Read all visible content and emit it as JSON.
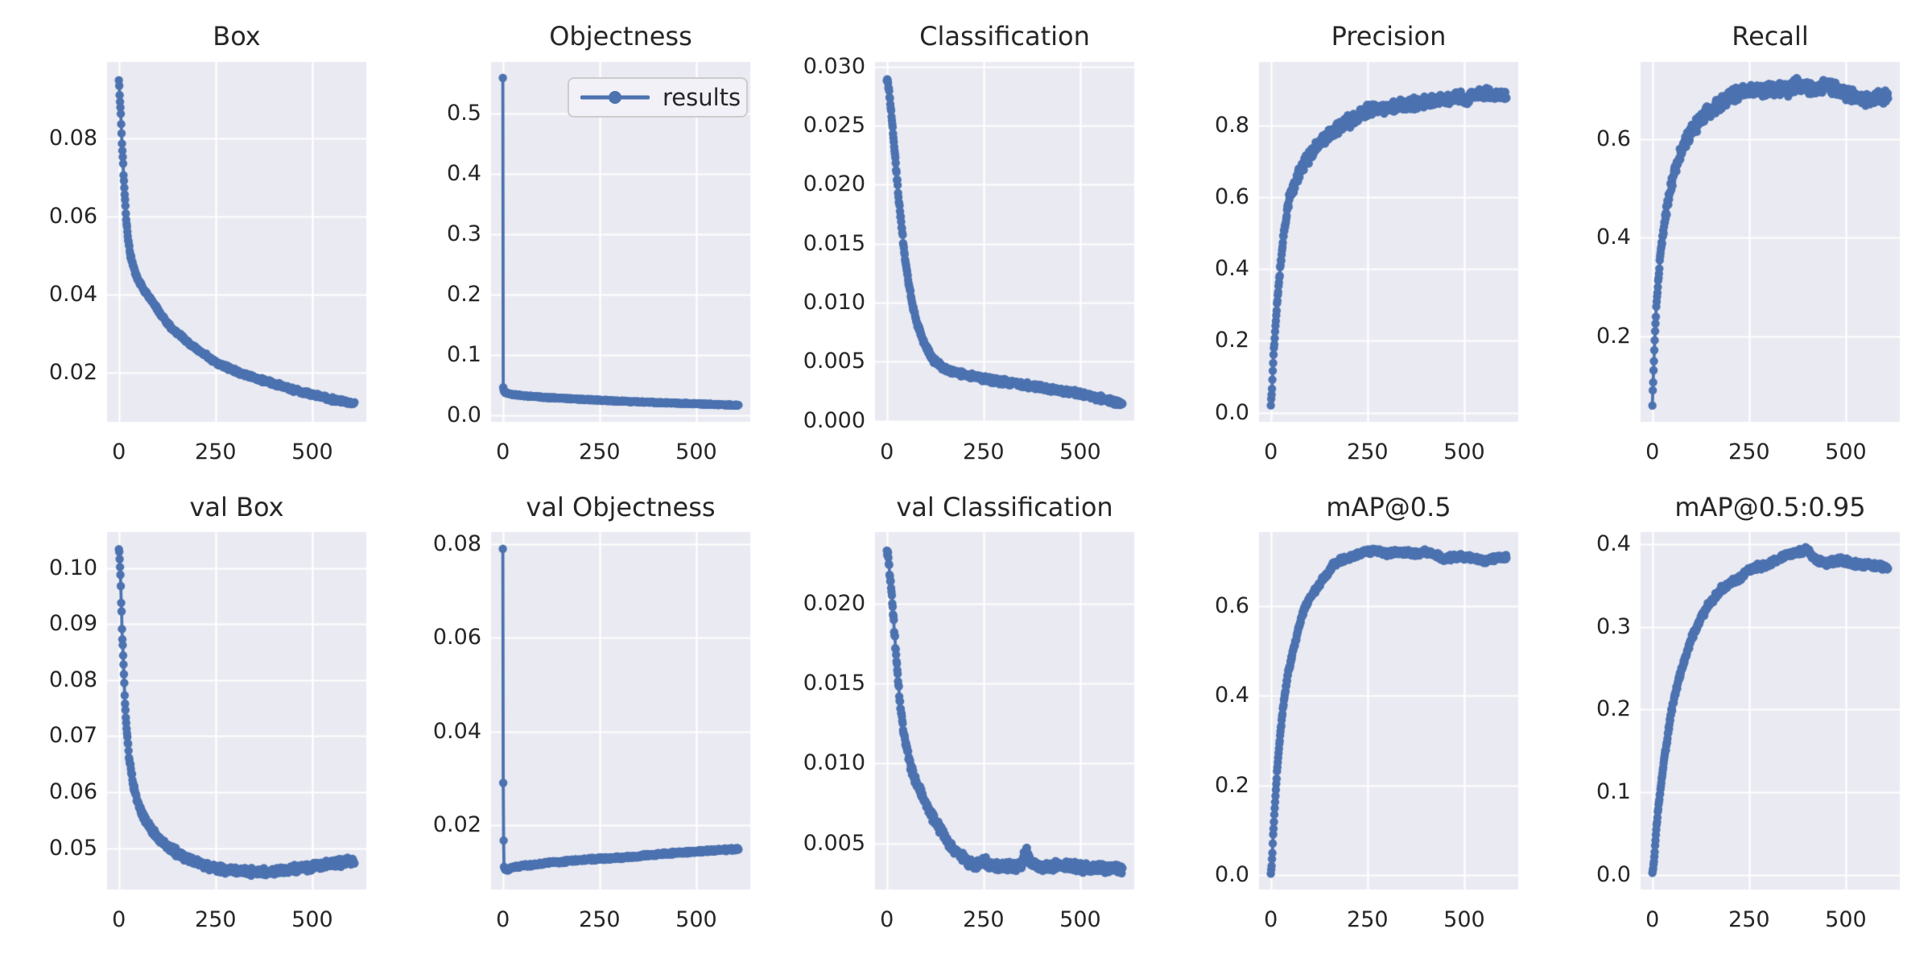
{
  "figure": {
    "series_color": "#4c72b0",
    "axes_background": "#eaeaf2",
    "grid_color": "#ffffff",
    "text_color": "#262626",
    "figure_background": "#ffffff",
    "legend_background": "#f2f1f8",
    "legend_border": "#cccccc"
  },
  "legend": {
    "label": "results",
    "position": "upper-right-of-objectness-plot"
  },
  "chart_data": [
    {
      "title": "Box",
      "slug": "box",
      "type": "line",
      "series": "results",
      "xlim": [
        -30.5,
        639.5
      ],
      "ylim": [
        0.0075,
        0.0995
      ],
      "xticks": {
        "values": [
          0,
          250,
          500
        ],
        "labels": [
          "0",
          "250",
          "500"
        ]
      },
      "yticks": {
        "values": [
          0.02,
          0.04,
          0.06,
          0.08
        ],
        "labels": [
          "0.02",
          "0.04",
          "0.06",
          "0.08"
        ]
      },
      "keypoints": {
        "x": [
          0,
          2,
          5,
          8,
          12,
          16,
          20,
          25,
          30,
          40,
          50,
          60,
          75,
          90,
          110,
          130,
          150,
          175,
          200,
          250,
          300,
          350,
          400,
          450,
          500,
          550,
          580,
          609
        ],
        "y": [
          0.0953,
          0.091,
          0.086,
          0.079,
          0.071,
          0.064,
          0.058,
          0.0535,
          0.05,
          0.0462,
          0.0438,
          0.042,
          0.0398,
          0.0378,
          0.0348,
          0.0322,
          0.0302,
          0.0282,
          0.0262,
          0.0228,
          0.0205,
          0.0188,
          0.0172,
          0.0158,
          0.0145,
          0.0133,
          0.0127,
          0.0122
        ]
      },
      "jitter": 0.0006,
      "jitter_ramp": false
    },
    {
      "title": "Objectness",
      "slug": "objectness",
      "type": "line",
      "series": "results",
      "xlim": [
        -30.5,
        639.5
      ],
      "ylim": [
        -0.0106,
        0.5851
      ],
      "xticks": {
        "values": [
          0,
          250,
          500
        ],
        "labels": [
          "0",
          "250",
          "500"
        ]
      },
      "yticks": {
        "values": [
          0.0,
          0.1,
          0.2,
          0.3,
          0.4,
          0.5
        ],
        "labels": [
          "0.0",
          "0.1",
          "0.2",
          "0.3",
          "0.4",
          "0.5"
        ]
      },
      "keypoints": {
        "x": [
          0,
          1,
          3,
          6,
          10,
          20,
          40,
          70,
          100,
          150,
          200,
          250,
          300,
          350,
          400,
          450,
          500,
          550,
          609
        ],
        "y": [
          0.558,
          0.046,
          0.04,
          0.038,
          0.0368,
          0.0352,
          0.0335,
          0.0318,
          0.0303,
          0.0285,
          0.0268,
          0.0252,
          0.0238,
          0.0225,
          0.0213,
          0.0202,
          0.0192,
          0.0181,
          0.017
        ]
      },
      "jitter": 0.0012,
      "jitter_ramp": false
    },
    {
      "title": "Classification",
      "slug": "classification",
      "type": "line",
      "series": "results",
      "xlim": [
        -30.5,
        639.5
      ],
      "ylim": [
        -0.0001,
        0.0304
      ],
      "xticks": {
        "values": [
          0,
          250,
          500
        ],
        "labels": [
          "0",
          "250",
          "500"
        ]
      },
      "yticks": {
        "values": [
          0.0,
          0.005,
          0.01,
          0.015,
          0.02,
          0.025,
          0.03
        ],
        "labels": [
          "0.000",
          "0.005",
          "0.010",
          "0.015",
          "0.020",
          "0.025",
          "0.030"
        ]
      },
      "keypoints": {
        "x": [
          0,
          3,
          6,
          10,
          15,
          20,
          25,
          30,
          35,
          40,
          45,
          50,
          55,
          60,
          65,
          70,
          80,
          90,
          100,
          110,
          120,
          135,
          150,
          175,
          200,
          250,
          300,
          350,
          400,
          450,
          500,
          550,
          609
        ],
        "y": [
          0.029,
          0.0287,
          0.0278,
          0.0265,
          0.0248,
          0.0229,
          0.0209,
          0.0191,
          0.0174,
          0.0158,
          0.0143,
          0.0131,
          0.012,
          0.011,
          0.0101,
          0.0093,
          0.0081,
          0.0071,
          0.0063,
          0.0057,
          0.0052,
          0.00475,
          0.0044,
          0.00415,
          0.0039,
          0.00355,
          0.0033,
          0.00305,
          0.0028,
          0.00255,
          0.0023,
          0.0019,
          0.00145
        ]
      },
      "jitter": 0.00028,
      "jitter_ramp": false
    },
    {
      "title": "Precision",
      "slug": "precision",
      "type": "line",
      "series": "results",
      "xlim": [
        -30.5,
        639.5
      ],
      "ylim": [
        -0.0256,
        0.9766
      ],
      "xticks": {
        "values": [
          0,
          250,
          500
        ],
        "labels": [
          "0",
          "250",
          "500"
        ]
      },
      "yticks": {
        "values": [
          0.0,
          0.2,
          0.4,
          0.6,
          0.8
        ],
        "labels": [
          "0.0",
          "0.2",
          "0.4",
          "0.6",
          "0.8"
        ]
      },
      "keypoints": {
        "x": [
          0,
          2,
          4,
          6,
          8,
          10,
          13,
          16,
          20,
          24,
          28,
          32,
          36,
          40,
          45,
          50,
          55,
          60,
          70,
          80,
          90,
          100,
          115,
          130,
          145,
          160,
          180,
          200,
          225,
          250,
          275,
          300,
          325,
          350,
          375,
          400,
          425,
          450,
          475,
          500,
          525,
          550,
          575,
          609
        ],
        "y": [
          0.02,
          0.05,
          0.09,
          0.14,
          0.18,
          0.21,
          0.26,
          0.3,
          0.35,
          0.4,
          0.44,
          0.48,
          0.52,
          0.55,
          0.58,
          0.6,
          0.62,
          0.635,
          0.66,
          0.68,
          0.7,
          0.715,
          0.74,
          0.755,
          0.77,
          0.785,
          0.8,
          0.81,
          0.825,
          0.84,
          0.845,
          0.85,
          0.855,
          0.855,
          0.86,
          0.87,
          0.875,
          0.87,
          0.88,
          0.875,
          0.88,
          0.89,
          0.885,
          0.88
        ]
      },
      "jitter": 0.02,
      "jitter_ramp": true
    },
    {
      "title": "Recall",
      "slug": "recall",
      "type": "line",
      "series": "results",
      "xlim": [
        -30.5,
        639.5
      ],
      "ylim": [
        0.0269,
        0.7562
      ],
      "xticks": {
        "values": [
          0,
          250,
          500
        ],
        "labels": [
          "0",
          "250",
          "500"
        ]
      },
      "yticks": {
        "values": [
          0.2,
          0.4,
          0.6
        ],
        "labels": [
          "0.2",
          "0.4",
          "0.6"
        ]
      },
      "keypoints": {
        "x": [
          0,
          1,
          2,
          3,
          5,
          7,
          9,
          11,
          14,
          17,
          20,
          24,
          28,
          32,
          36,
          40,
          45,
          50,
          55,
          60,
          70,
          80,
          90,
          100,
          115,
          130,
          145,
          160,
          180,
          200,
          225,
          250,
          275,
          300,
          325,
          350,
          375,
          400,
          425,
          450,
          475,
          500,
          525,
          550,
          575,
          609
        ],
        "y": [
          0.06,
          0.09,
          0.11,
          0.13,
          0.17,
          0.21,
          0.24,
          0.27,
          0.3,
          0.33,
          0.36,
          0.39,
          0.41,
          0.43,
          0.455,
          0.47,
          0.49,
          0.51,
          0.525,
          0.54,
          0.565,
          0.585,
          0.6,
          0.615,
          0.63,
          0.645,
          0.655,
          0.665,
          0.675,
          0.685,
          0.695,
          0.7,
          0.695,
          0.7,
          0.705,
          0.7,
          0.71,
          0.705,
          0.7,
          0.71,
          0.7,
          0.695,
          0.685,
          0.68,
          0.685,
          0.685
        ]
      },
      "jitter": 0.016,
      "jitter_ramp": true
    },
    {
      "title": "val Box",
      "slug": "val-box",
      "type": "line",
      "series": "results",
      "xlim": [
        -30.5,
        639.5
      ],
      "ylim": [
        0.0426,
        0.1064
      ],
      "xticks": {
        "values": [
          0,
          250,
          500
        ],
        "labels": [
          "0",
          "250",
          "500"
        ]
      },
      "yticks": {
        "values": [
          0.05,
          0.06,
          0.07,
          0.08,
          0.09,
          0.1
        ],
        "labels": [
          "0.05",
          "0.06",
          "0.07",
          "0.08",
          "0.09",
          "0.10"
        ]
      },
      "keypoints": {
        "x": [
          0,
          2,
          4,
          6,
          9,
          12,
          15,
          18,
          22,
          26,
          30,
          35,
          40,
          45,
          50,
          60,
          70,
          80,
          90,
          100,
          115,
          130,
          145,
          160,
          180,
          200,
          220,
          250,
          280,
          310,
          340,
          370,
          400,
          430,
          460,
          490,
          520,
          550,
          580,
          609
        ],
        "y": [
          0.1035,
          0.102,
          0.0985,
          0.094,
          0.0875,
          0.0825,
          0.0775,
          0.0733,
          0.0695,
          0.0668,
          0.0645,
          0.0622,
          0.0605,
          0.0592,
          0.058,
          0.0562,
          0.0548,
          0.0538,
          0.0528,
          0.052,
          0.051,
          0.0502,
          0.0494,
          0.0488,
          0.048,
          0.0474,
          0.0469,
          0.0464,
          0.0461,
          0.0459,
          0.0458,
          0.0458,
          0.0459,
          0.0461,
          0.0463,
          0.0466,
          0.0469,
          0.0472,
          0.0475,
          0.0477
        ]
      },
      "jitter": 0.0008,
      "jitter_ramp": false
    },
    {
      "title": "val Objectness",
      "slug": "val-objectness",
      "type": "line",
      "series": "results",
      "xlim": [
        -30.5,
        639.5
      ],
      "ylim": [
        0.0063,
        0.0825
      ],
      "xticks": {
        "values": [
          0,
          250,
          500
        ],
        "labels": [
          "0",
          "250",
          "500"
        ]
      },
      "yticks": {
        "values": [
          0.02,
          0.04,
          0.06,
          0.08
        ],
        "labels": [
          "0.02",
          "0.04",
          "0.06",
          "0.08"
        ]
      },
      "keypoints": {
        "x": [
          0,
          1,
          2,
          3,
          5,
          8,
          12,
          20,
          30,
          50,
          70,
          100,
          130,
          160,
          200,
          240,
          280,
          320,
          360,
          400,
          440,
          480,
          520,
          560,
          609
        ],
        "y": [
          0.079,
          0.029,
          0.0165,
          0.0112,
          0.0105,
          0.0104,
          0.0106,
          0.0108,
          0.011,
          0.0113,
          0.0115,
          0.0118,
          0.0121,
          0.0123,
          0.0126,
          0.0128,
          0.013,
          0.0132,
          0.0135,
          0.0138,
          0.0141,
          0.0143,
          0.0145,
          0.0147,
          0.0149
        ]
      },
      "jitter": 0.00035,
      "jitter_ramp": false
    },
    {
      "title": "val Classification",
      "slug": "val-classification",
      "type": "line",
      "series": "results",
      "xlim": [
        -30.5,
        639.5
      ],
      "ylim": [
        0.0021,
        0.0245
      ],
      "xticks": {
        "values": [
          0,
          250,
          500
        ],
        "labels": [
          "0",
          "250",
          "500"
        ]
      },
      "yticks": {
        "values": [
          0.005,
          0.01,
          0.015,
          0.02
        ],
        "labels": [
          "0.005",
          "0.010",
          "0.015",
          "0.020"
        ]
      },
      "keypoints": {
        "x": [
          0,
          3,
          6,
          10,
          14,
          18,
          22,
          26,
          30,
          35,
          40,
          45,
          50,
          55,
          60,
          70,
          80,
          90,
          100,
          110,
          120,
          130,
          140,
          150,
          160,
          175,
          190,
          210,
          230,
          250,
          270,
          290,
          310,
          330,
          350,
          360,
          370,
          385,
          400,
          430,
          460,
          500,
          550,
          609
        ],
        "y": [
          0.0235,
          0.023,
          0.0222,
          0.0213,
          0.0201,
          0.0188,
          0.0174,
          0.016,
          0.0148,
          0.0135,
          0.0127,
          0.0117,
          0.0111,
          0.0106,
          0.01,
          0.0092,
          0.0086,
          0.0081,
          0.0076,
          0.0071,
          0.0066,
          0.0062,
          0.0058,
          0.0054,
          0.005,
          0.0046,
          0.0042,
          0.0038,
          0.0036,
          0.0039,
          0.0036,
          0.0035,
          0.0036,
          0.0035,
          0.0037,
          0.0047,
          0.0039,
          0.0036,
          0.0035,
          0.0036,
          0.0036,
          0.0035,
          0.0035,
          0.0034
        ]
      },
      "jitter": 0.00035,
      "jitter_ramp": false
    },
    {
      "title": "mAP@0.5",
      "slug": "map-0-5",
      "type": "line",
      "series": "results",
      "xlim": [
        -30.5,
        639.5
      ],
      "ylim": [
        -0.0322,
        0.7642
      ],
      "xticks": {
        "values": [
          0,
          250,
          500
        ],
        "labels": [
          "0",
          "250",
          "500"
        ]
      },
      "yticks": {
        "values": [
          0.0,
          0.2,
          0.4,
          0.6
        ],
        "labels": [
          "0.0",
          "0.2",
          "0.4",
          "0.6"
        ]
      },
      "keypoints": {
        "x": [
          0,
          2,
          4,
          6,
          8,
          10,
          13,
          16,
          20,
          24,
          28,
          32,
          36,
          40,
          45,
          50,
          55,
          60,
          70,
          80,
          90,
          100,
          110,
          120,
          130,
          140,
          150,
          160,
          175,
          200,
          225,
          250,
          275,
          300,
          325,
          350,
          375,
          400,
          425,
          450,
          475,
          500,
          525,
          550,
          575,
          609
        ],
        "y": [
          0.004,
          0.02,
          0.05,
          0.09,
          0.12,
          0.15,
          0.19,
          0.23,
          0.27,
          0.31,
          0.345,
          0.375,
          0.4,
          0.425,
          0.45,
          0.47,
          0.49,
          0.51,
          0.545,
          0.575,
          0.6,
          0.615,
          0.63,
          0.64,
          0.655,
          0.665,
          0.675,
          0.69,
          0.7,
          0.705,
          0.715,
          0.72,
          0.725,
          0.715,
          0.72,
          0.72,
          0.715,
          0.72,
          0.715,
          0.705,
          0.71,
          0.71,
          0.705,
          0.7,
          0.705,
          0.71
        ]
      },
      "jitter": 0.007,
      "jitter_ramp": true
    },
    {
      "title": "mAP@0.5:0.95",
      "slug": "map-0-5-0-95",
      "type": "line",
      "series": "results",
      "xlim": [
        -30.5,
        639.5
      ],
      "ylim": [
        -0.0177,
        0.4147
      ],
      "xticks": {
        "values": [
          0,
          250,
          500
        ],
        "labels": [
          "0",
          "250",
          "500"
        ]
      },
      "yticks": {
        "values": [
          0.0,
          0.1,
          0.2,
          0.3,
          0.4
        ],
        "labels": [
          "0.0",
          "0.1",
          "0.2",
          "0.3",
          "0.4"
        ]
      },
      "keypoints": {
        "x": [
          0,
          2,
          4,
          6,
          8,
          10,
          13,
          16,
          20,
          24,
          28,
          32,
          36,
          40,
          45,
          50,
          55,
          60,
          70,
          80,
          90,
          100,
          110,
          120,
          130,
          140,
          150,
          160,
          175,
          200,
          225,
          250,
          275,
          300,
          325,
          350,
          375,
          400,
          415,
          430,
          450,
          475,
          500,
          525,
          550,
          575,
          609
        ],
        "y": [
          0.002,
          0.008,
          0.016,
          0.028,
          0.042,
          0.055,
          0.07,
          0.085,
          0.1,
          0.115,
          0.13,
          0.145,
          0.155,
          0.17,
          0.185,
          0.2,
          0.21,
          0.22,
          0.24,
          0.255,
          0.27,
          0.285,
          0.295,
          0.305,
          0.315,
          0.322,
          0.33,
          0.335,
          0.345,
          0.352,
          0.36,
          0.368,
          0.373,
          0.375,
          0.383,
          0.388,
          0.39,
          0.393,
          0.385,
          0.38,
          0.377,
          0.38,
          0.38,
          0.376,
          0.375,
          0.374,
          0.371
        ]
      },
      "jitter": 0.0045,
      "jitter_ramp": true
    }
  ]
}
